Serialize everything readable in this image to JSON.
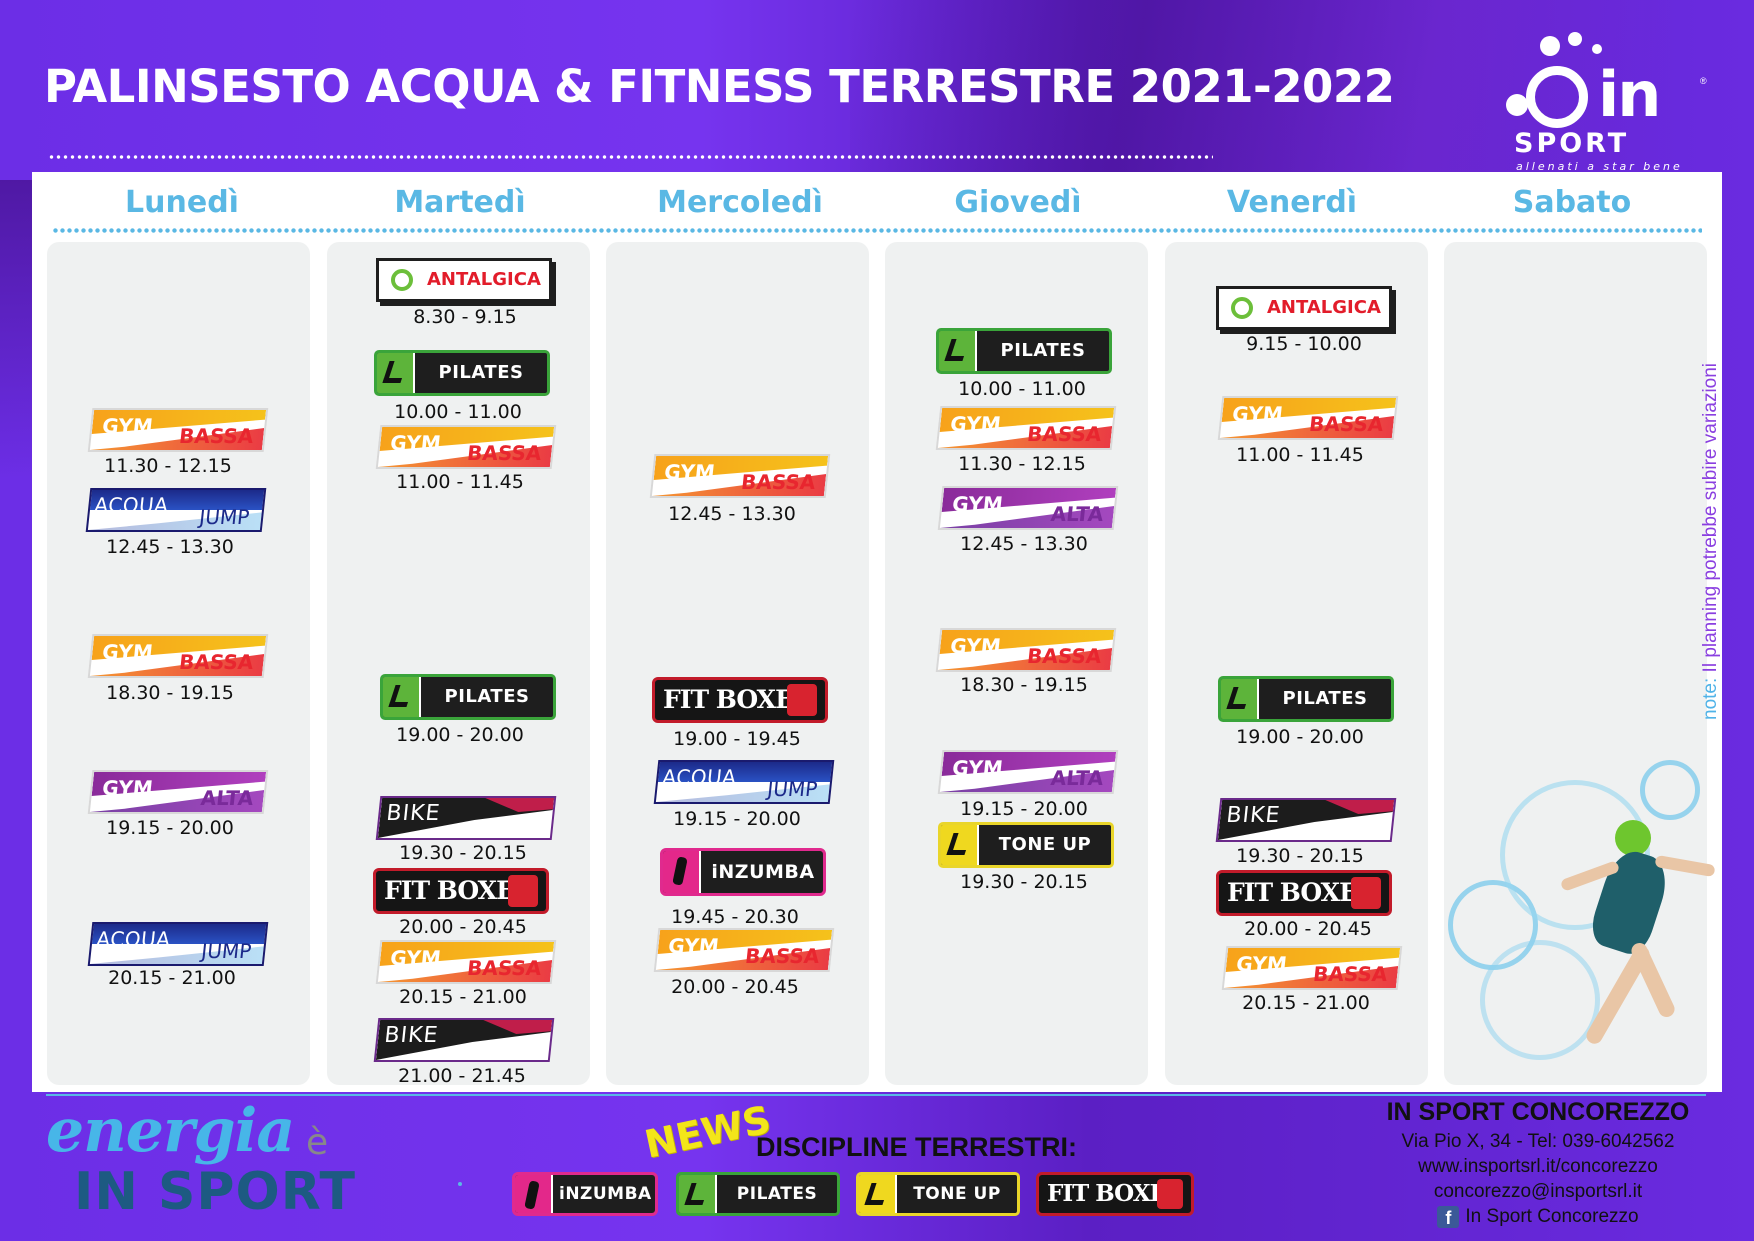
{
  "header": {
    "title": "PALINSESTO ACQUA & FITNESS TERRESTRE 2021-2022"
  },
  "logo": {
    "brand_in": "in",
    "brand_sport": "SPORT",
    "registered": "®",
    "tagline": "allenati a star bene"
  },
  "days": [
    "Lunedì",
    "Martedì",
    "Mercoledì",
    "Giovedì",
    "Venerdì",
    "Sabato"
  ],
  "schedule": {
    "lunedi": [
      {
        "label_top": "GYM",
        "label_bottom": "BASSA",
        "time": "11.30 - 12.15"
      },
      {
        "label_top": "ACQUA",
        "label_bottom": "JUMP",
        "time": "12.45 - 13.30"
      },
      {
        "label_top": "GYM",
        "label_bottom": "BASSA",
        "time": "18.30 - 19.15"
      },
      {
        "label_top": "GYM",
        "label_bottom": "ALTA",
        "time": "19.15 - 20.00"
      },
      {
        "label_top": "ACQUA",
        "label_bottom": "JUMP",
        "time": "20.15 - 21.00"
      }
    ],
    "martedi": [
      {
        "label": "ANTALGICA",
        "time": "8.30 - 9.15"
      },
      {
        "label": "PILATES",
        "time": "10.00 - 11.00"
      },
      {
        "label_top": "GYM",
        "label_bottom": "BASSA",
        "time": "11.00 - 11.45"
      },
      {
        "label": "PILATES",
        "time": "19.00 - 20.00"
      },
      {
        "label": "BIKE",
        "time": "19.30 - 20.15"
      },
      {
        "label": "FIT BOXE",
        "time": "20.00 - 20.45"
      },
      {
        "label_top": "GYM",
        "label_bottom": "BASSA",
        "time": "20.15 - 21.00"
      },
      {
        "label": "BIKE",
        "time": "21.00 - 21.45"
      }
    ],
    "mercoledi": [
      {
        "label_top": "GYM",
        "label_bottom": "BASSA",
        "time": "12.45 - 13.30"
      },
      {
        "label": "FIT BOXE",
        "time": "19.00 - 19.45"
      },
      {
        "label_top": "ACQUA",
        "label_bottom": "JUMP",
        "time": "19.15 - 20.00"
      },
      {
        "label": "iNZUMBA",
        "time": "19.45 - 20.30"
      },
      {
        "label_top": "GYM",
        "label_bottom": "BASSA",
        "time": "20.00 - 20.45"
      }
    ],
    "giovedi": [
      {
        "label": "PILATES",
        "time": "10.00 - 11.00"
      },
      {
        "label_top": "GYM",
        "label_bottom": "BASSA",
        "time": "11.30 - 12.15"
      },
      {
        "label_top": "GYM",
        "label_bottom": "ALTA",
        "time": "12.45 - 13.30"
      },
      {
        "label_top": "GYM",
        "label_bottom": "BASSA",
        "time": "18.30 - 19.15"
      },
      {
        "label_top": "GYM",
        "label_bottom": "ALTA",
        "time": "19.15 - 20.00"
      },
      {
        "label": "TONE UP",
        "time": "19.30 - 20.15"
      }
    ],
    "venerdi": [
      {
        "label": "ANTALGICA",
        "time": "9.15 - 10.00"
      },
      {
        "label_top": "GYM",
        "label_bottom": "BASSA",
        "time": "11.00 - 11.45"
      },
      {
        "label": "PILATES",
        "time": "19.00 - 20.00"
      },
      {
        "label": "BIKE",
        "time": "19.30 - 20.15"
      },
      {
        "label": "FIT BOXE",
        "time": "20.00 - 20.45"
      },
      {
        "label_top": "GYM",
        "label_bottom": "BASSA",
        "time": "20.15 - 21.00"
      }
    ]
  },
  "note": {
    "prefix": "note:",
    "text": "Il planning potrebbe subire variazioni"
  },
  "footer": {
    "slogan_word": "energia",
    "slogan_e": "è",
    "slogan_brand": "IN SPORT",
    "news": "NEWS",
    "disciplines_title": "DISCIPLINE TERRESTRI:",
    "disciplines": [
      "iNZUMBA",
      "PILATES",
      "TONE UP",
      "FIT BOXE"
    ],
    "contact": {
      "name": "IN SPORT CONCOREZZO",
      "address": "Via Pio X, 34 - Tel: 039-6042562",
      "website": "www.insportsrl.it/concorezzo",
      "email": "concorezzo@insportsrl.it",
      "facebook": "In Sport Concorezzo",
      "facebook_icon": "f"
    }
  },
  "colors": {
    "background": "#6a2be0",
    "day_heading": "#5ab8e4",
    "gym_bassa": "#f38b1c",
    "gym_alta": "#8a2b9a",
    "pilates": "#3aa43a",
    "fitboxe": "#c21b2a",
    "zumba": "#e02a8e",
    "toneup": "#e9d52a"
  }
}
